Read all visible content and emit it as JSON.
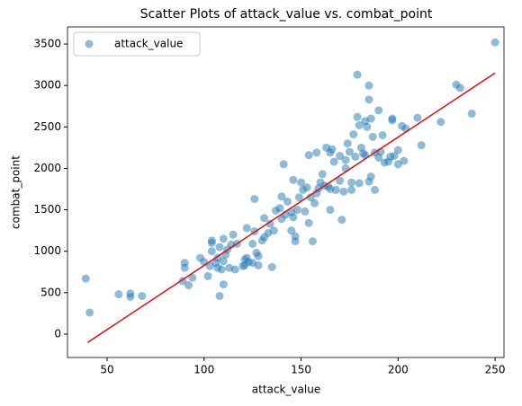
{
  "chart_data": {
    "type": "scatter",
    "title": "Scatter Plots of attack_value vs. combat_point",
    "x_label": "attack_value",
    "y_label": "combat_point",
    "xlim": [
      29.6,
      254.6
    ],
    "ylim": [
      -282,
      3706
    ],
    "xticks": [
      50,
      100,
      150,
      200,
      250
    ],
    "yticks": [
      0,
      500,
      1000,
      1500,
      2000,
      2500,
      3000,
      3500
    ],
    "legend": "upper left",
    "series": [
      {
        "name": "attack_value",
        "color": "#1f77b4",
        "x": [
          39,
          41,
          56,
          62,
          62,
          68,
          89,
          90,
          90,
          92,
          94,
          98,
          100,
          102,
          103,
          104,
          104,
          104,
          106,
          107,
          107,
          108,
          108,
          109,
          110,
          110,
          110,
          111,
          112,
          113,
          114,
          115,
          116,
          117,
          120,
          121,
          121,
          122,
          122,
          123,
          125,
          125,
          126,
          126,
          127,
          128,
          128,
          130,
          131,
          131,
          133,
          134,
          135,
          136,
          137,
          139,
          140,
          140,
          141,
          142,
          143,
          145,
          145,
          146,
          146,
          147,
          147,
          148,
          149,
          150,
          151,
          152,
          153,
          154,
          154,
          155,
          156,
          157,
          158,
          158,
          159,
          160,
          161,
          162,
          163,
          164,
          165,
          165,
          165,
          166,
          167,
          168,
          170,
          170,
          171,
          172,
          173,
          173,
          174,
          175,
          176,
          176,
          177,
          178,
          179,
          179,
          180,
          180,
          181,
          182,
          183,
          183,
          184,
          185,
          185,
          185,
          186,
          186,
          187,
          188,
          188,
          190,
          190,
          191,
          192,
          193,
          195,
          196,
          197,
          197,
          198,
          200,
          200,
          202,
          203,
          204,
          210,
          212,
          222,
          230,
          232,
          238,
          250
        ],
        "values": [
          670,
          260,
          480,
          490,
          450,
          460,
          640,
          800,
          860,
          590,
          680,
          920,
          870,
          700,
          820,
          1000,
          1100,
          1130,
          860,
          800,
          920,
          460,
          1050,
          780,
          600,
          880,
          1150,
          960,
          1020,
          800,
          1080,
          1200,
          780,
          1090,
          820,
          830,
          900,
          1280,
          920,
          870,
          860,
          1090,
          1630,
          1240,
          980,
          940,
          830,
          1130,
          1400,
          1170,
          1220,
          1330,
          810,
          1250,
          1490,
          1520,
          1660,
          1390,
          2050,
          1440,
          1600,
          1470,
          1250,
          1410,
          1860,
          1180,
          1120,
          1500,
          1650,
          1830,
          1740,
          1480,
          1770,
          1340,
          2160,
          1650,
          1120,
          1580,
          2190,
          1700,
          1760,
          1830,
          1930,
          1790,
          2250,
          1780,
          1500,
          2190,
          1750,
          2230,
          2080,
          1740,
          1850,
          2150,
          1380,
          1720,
          2000,
          2100,
          2300,
          2200,
          1830,
          1740,
          2410,
          2140,
          3130,
          2620,
          2520,
          1820,
          2250,
          2180,
          2570,
          2160,
          2500,
          3000,
          2830,
          1840,
          1900,
          2600,
          2380,
          2190,
          1740,
          2700,
          2130,
          2200,
          2400,
          2070,
          2080,
          2140,
          2600,
          2580,
          2150,
          2220,
          2050,
          2510,
          2090,
          2480,
          2610,
          2280,
          2560,
          3010,
          2970,
          2660,
          3520
        ]
      }
    ],
    "trend_line": {
      "color": "#e01010",
      "x": [
        40,
        250
      ],
      "values": [
        -100,
        3150
      ]
    }
  }
}
